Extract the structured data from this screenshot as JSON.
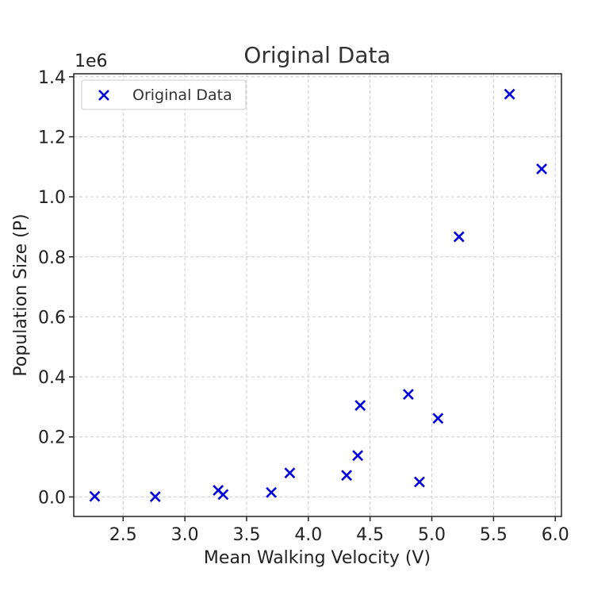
{
  "chart_data": {
    "type": "scatter",
    "title": "Original Data",
    "xlabel": "Mean Walking Velocity (V)",
    "ylabel": "Population Size (P)",
    "y_offset_label": "1e6",
    "xlim": [
      2.1,
      6.05
    ],
    "ylim": [
      -65000,
      1410000
    ],
    "xticks": [
      2.5,
      3.0,
      3.5,
      4.0,
      4.5,
      5.0,
      5.5,
      6.0
    ],
    "xtick_labels": [
      "2.5",
      "3.0",
      "3.5",
      "4.0",
      "4.5",
      "5.0",
      "5.5",
      "6.0"
    ],
    "yticks": [
      0,
      200000,
      400000,
      600000,
      800000,
      1000000,
      1200000,
      1400000
    ],
    "ytick_labels": [
      "0.0",
      "0.2",
      "0.4",
      "0.6",
      "0.8",
      "1.0",
      "1.2",
      "1.4"
    ],
    "grid": true,
    "legend_position": "top-left",
    "marker": "x",
    "color": "#0000dd",
    "series": [
      {
        "name": "Original Data",
        "x": [
          2.27,
          2.76,
          3.27,
          3.31,
          3.7,
          3.85,
          4.31,
          4.4,
          4.42,
          4.81,
          4.9,
          5.05,
          5.22,
          5.63,
          5.89
        ],
        "y": [
          2000,
          1000,
          22000,
          8000,
          15000,
          80000,
          72000,
          138000,
          305000,
          342000,
          50000,
          262000,
          867000,
          1342000,
          1093000
        ]
      }
    ]
  }
}
